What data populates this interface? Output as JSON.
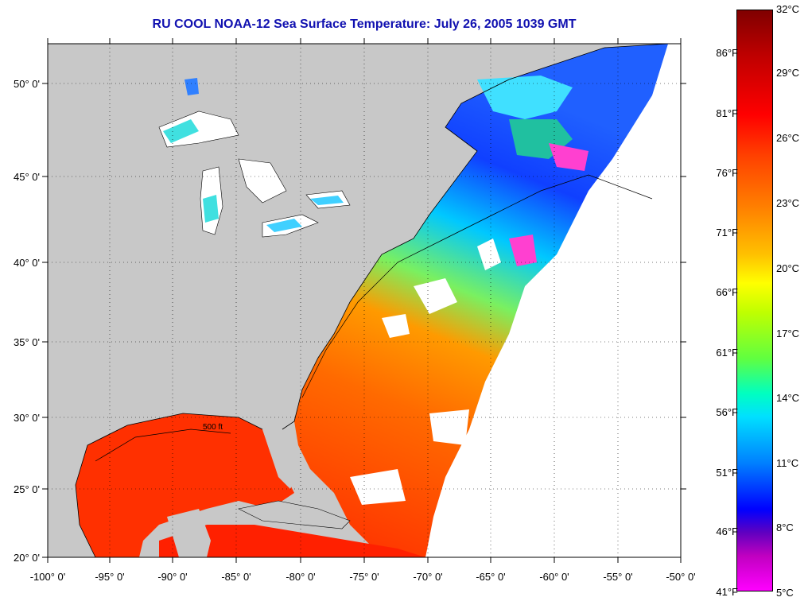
{
  "title": "RU COOL  NOAA-12  Sea Surface Temperature:  July 26, 2005 1039 GMT",
  "map": {
    "lon_labels": [
      "-100° 0'",
      "-95° 0'",
      "-90° 0'",
      "-85° 0'",
      "-80° 0'",
      "-75° 0'",
      "-70° 0'",
      "-65° 0'",
      "-60° 0'",
      "-55° 0'",
      "-50° 0'"
    ],
    "lat_labels": [
      "50° 0'",
      "45° 0'",
      "40° 0'",
      "35° 0'",
      "30° 0'",
      "25° 0'",
      "20° 0'"
    ],
    "contour_label": "500 ft",
    "colors": {
      "land": "#c8c8c8",
      "ocean_no_data": "#ffffff",
      "frame": "#000000"
    }
  },
  "colorbar": {
    "celsius": [
      "32°C",
      "29°C",
      "26°C",
      "23°C",
      "20°C",
      "17°C",
      "14°C",
      "11°C",
      "8°C",
      "5°C"
    ],
    "fahrenheit": [
      "86°F",
      "81°F",
      "76°F",
      "71°F",
      "66°F",
      "61°F",
      "56°F",
      "51°F",
      "46°F",
      "41°F"
    ]
  }
}
